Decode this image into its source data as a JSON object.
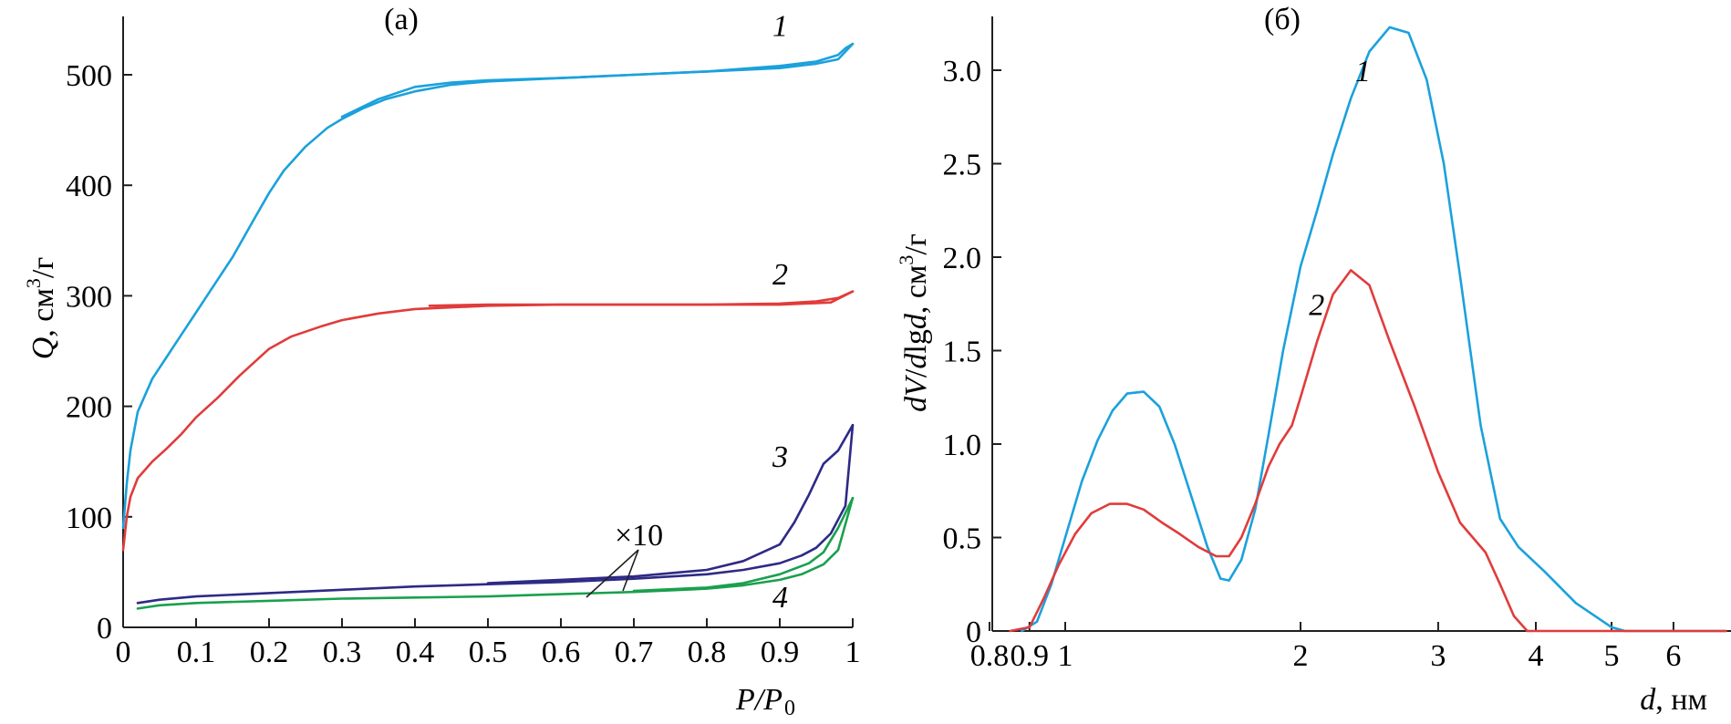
{
  "chart_data": [
    {
      "type": "line",
      "title": "(а)",
      "xlabel": "P/P",
      "xlabel_sub": "0",
      "ylabel_italic": "Q",
      "ylabel_rest": ", см",
      "ylabel_sup": "3",
      "ylabel_tail": "/г",
      "xlim": [
        0,
        1
      ],
      "ylim": [
        0,
        550
      ],
      "xticks": [
        0,
        0.1,
        0.2,
        0.3,
        0.4,
        0.5,
        0.6,
        0.7,
        0.8,
        0.9,
        1
      ],
      "xtick_labels": [
        "0",
        "0.1",
        "0.2",
        "0.3",
        "0.4",
        "0.5",
        "0.6",
        "0.7",
        "0.8",
        "0.9",
        "1"
      ],
      "yticks": [
        0,
        100,
        200,
        300,
        400,
        500
      ],
      "ytick_labels": [
        "0",
        "100",
        "200",
        "300",
        "400",
        "500"
      ],
      "annotation": "×10",
      "series": [
        {
          "name": "1",
          "color": "#1ba1dc",
          "label_pos": [
            0.92,
            545
          ],
          "x": [
            0,
            0.005,
            0.01,
            0.02,
            0.04,
            0.06,
            0.08,
            0.1,
            0.12,
            0.15,
            0.18,
            0.2,
            0.22,
            0.25,
            0.28,
            0.3,
            0.33,
            0.36,
            0.4,
            0.45,
            0.5,
            0.6,
            0.7,
            0.8,
            0.9,
            0.95,
            0.98,
            0.99,
            1.0
          ],
          "y": [
            90,
            130,
            160,
            195,
            225,
            245,
            265,
            285,
            305,
            335,
            370,
            393,
            413,
            435,
            452,
            460,
            470,
            478,
            485,
            491,
            494,
            497,
            500,
            503,
            508,
            512,
            518,
            524,
            528
          ],
          "x2": [
            1.0,
            0.98,
            0.95,
            0.9,
            0.8,
            0.7,
            0.6,
            0.5,
            0.45,
            0.4,
            0.35,
            0.3
          ],
          "y2": [
            528,
            514,
            510,
            506,
            503,
            500,
            497,
            495,
            493,
            489,
            478,
            462
          ]
        },
        {
          "name": "2",
          "color": "#e03c3b",
          "label_pos": [
            0.92,
            320
          ],
          "x": [
            0,
            0.005,
            0.01,
            0.02,
            0.04,
            0.06,
            0.08,
            0.1,
            0.13,
            0.16,
            0.2,
            0.23,
            0.27,
            0.3,
            0.35,
            0.4,
            0.5,
            0.6,
            0.7,
            0.8,
            0.9,
            0.95,
            0.98,
            1.0
          ],
          "y": [
            70,
            100,
            118,
            135,
            150,
            162,
            175,
            190,
            208,
            228,
            252,
            263,
            272,
            278,
            284,
            288,
            291,
            292,
            292,
            292,
            293,
            295,
            298,
            304
          ],
          "x2": [
            1.0,
            0.97,
            0.9,
            0.7,
            0.5,
            0.42
          ],
          "y2": [
            304,
            294,
            292,
            292,
            292,
            291
          ]
        },
        {
          "name": "3",
          "color": "#2e2a86",
          "label_pos": [
            0.92,
            155
          ],
          "x": [
            0.02,
            0.05,
            0.1,
            0.2,
            0.3,
            0.4,
            0.5,
            0.6,
            0.7,
            0.8,
            0.85,
            0.9,
            0.93,
            0.95,
            0.97,
            0.99,
            1.0
          ],
          "y": [
            22,
            25,
            28,
            31,
            34,
            37,
            39,
            41,
            44,
            48,
            52,
            58,
            65,
            72,
            85,
            110,
            183
          ],
          "x2": [
            1.0,
            0.98,
            0.96,
            0.94,
            0.92,
            0.9,
            0.85,
            0.8,
            0.7,
            0.6,
            0.5
          ],
          "y2": [
            183,
            160,
            148,
            120,
            95,
            75,
            60,
            52,
            46,
            43,
            40
          ]
        },
        {
          "name": "4",
          "color": "#1aa04e",
          "label_pos": [
            0.92,
            28
          ],
          "x": [
            0.02,
            0.05,
            0.1,
            0.2,
            0.3,
            0.4,
            0.5,
            0.6,
            0.7,
            0.8,
            0.85,
            0.9,
            0.93,
            0.96,
            0.98,
            1.0
          ],
          "y": [
            17,
            20,
            22,
            24,
            26,
            27,
            28,
            30,
            32,
            35,
            38,
            43,
            48,
            57,
            70,
            117
          ],
          "x2": [
            1.0,
            0.98,
            0.96,
            0.94,
            0.9,
            0.85,
            0.8,
            0.7
          ],
          "y2": [
            117,
            90,
            68,
            58,
            48,
            40,
            36,
            33
          ]
        }
      ]
    },
    {
      "type": "line",
      "title": "(б)",
      "xscale": "log",
      "xlabel_italic": "d",
      "xlabel_rest": ", нм",
      "ylabel_italic1": "dV",
      "ylabel_mid": "/",
      "ylabel_italic2": "d",
      "ylabel_lg": "lg",
      "ylabel_italic3": "d",
      "ylabel_rest": ", см",
      "ylabel_sup": "3",
      "ylabel_tail": "/г",
      "xlim": [
        0.8,
        7.0
      ],
      "ylim": [
        0,
        3.25
      ],
      "xticks": [
        0.8,
        0.9,
        1,
        2,
        3,
        4,
        5,
        6
      ],
      "xtick_labels": [
        "0.8",
        "0.9",
        "1",
        "2",
        "3",
        "4",
        "5",
        "6"
      ],
      "yticks": [
        0,
        0.5,
        1.0,
        1.5,
        2.0,
        2.5,
        3.0
      ],
      "ytick_labels": [
        "0",
        "0.5",
        "1.0",
        "1.5",
        "2.0",
        "2.5",
        "3.0"
      ],
      "series": [
        {
          "name": "1",
          "color": "#1ba1dc",
          "label_pos": [
            2.35,
            3.0
          ],
          "x": [
            0.88,
            0.92,
            0.96,
            1.0,
            1.05,
            1.1,
            1.15,
            1.2,
            1.26,
            1.32,
            1.38,
            1.45,
            1.52,
            1.58,
            1.62,
            1.68,
            1.75,
            1.82,
            1.9,
            2.0,
            2.1,
            2.2,
            2.32,
            2.45,
            2.6,
            2.75,
            2.9,
            3.05,
            3.2,
            3.4,
            3.6,
            3.8,
            4.1,
            4.5,
            5.0,
            5.2,
            6.0,
            7.0
          ],
          "y": [
            0.0,
            0.05,
            0.25,
            0.5,
            0.8,
            1.02,
            1.18,
            1.27,
            1.28,
            1.2,
            1.0,
            0.72,
            0.45,
            0.28,
            0.27,
            0.38,
            0.65,
            1.05,
            1.5,
            1.95,
            2.25,
            2.55,
            2.85,
            3.1,
            3.23,
            3.2,
            2.95,
            2.5,
            1.9,
            1.1,
            0.6,
            0.45,
            0.32,
            0.15,
            0.02,
            0.0,
            0.0,
            0.0
          ]
        },
        {
          "name": "2",
          "color": "#e03c3b",
          "label_pos": [
            2.05,
            1.75
          ],
          "x": [
            0.85,
            0.9,
            0.94,
            0.98,
            1.03,
            1.08,
            1.14,
            1.2,
            1.26,
            1.33,
            1.4,
            1.48,
            1.56,
            1.62,
            1.68,
            1.75,
            1.82,
            1.88,
            1.95,
            2.0,
            2.1,
            2.2,
            2.32,
            2.45,
            2.6,
            2.8,
            3.0,
            3.2,
            3.45,
            3.6,
            3.75,
            3.9,
            4.5,
            5.5,
            7.0
          ],
          "y": [
            0.0,
            0.02,
            0.18,
            0.35,
            0.52,
            0.63,
            0.68,
            0.68,
            0.65,
            0.58,
            0.52,
            0.45,
            0.4,
            0.4,
            0.5,
            0.68,
            0.88,
            1.0,
            1.1,
            1.25,
            1.55,
            1.8,
            1.93,
            1.85,
            1.55,
            1.2,
            0.85,
            0.58,
            0.42,
            0.25,
            0.08,
            0.0,
            0.0,
            0.0,
            0.0
          ]
        }
      ]
    }
  ]
}
